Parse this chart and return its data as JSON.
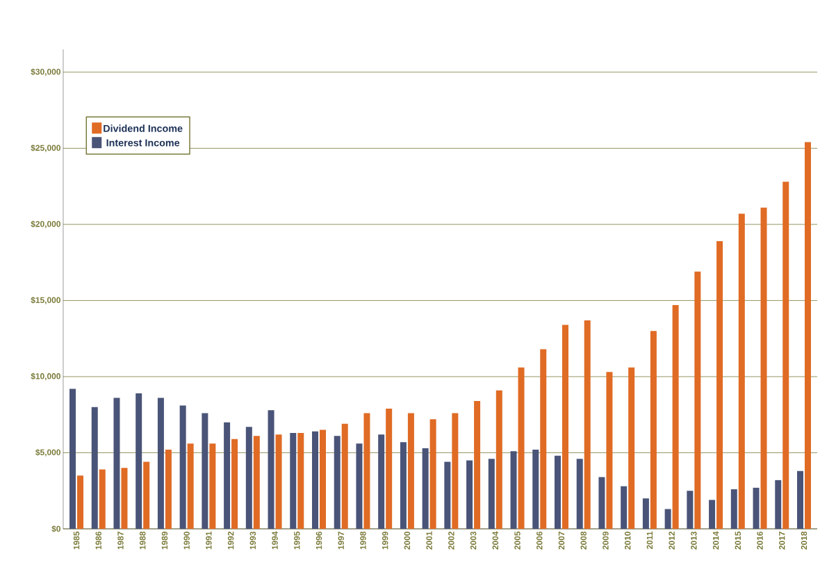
{
  "chart_data": {
    "type": "bar",
    "categories": [
      "1985",
      "1986",
      "1987",
      "1988",
      "1989",
      "1990",
      "1991",
      "1992",
      "1993",
      "1994",
      "1995",
      "1996",
      "1997",
      "1998",
      "1999",
      "2000",
      "2001",
      "2002",
      "2003",
      "2004",
      "2005",
      "2006",
      "2007",
      "2008",
      "2009",
      "2010",
      "2011",
      "2012",
      "2013",
      "2014",
      "2015",
      "2016",
      "2017",
      "2018"
    ],
    "series": [
      {
        "name": "Interest Income",
        "color": "#4a5478",
        "values": [
          9200,
          8000,
          8600,
          8900,
          8600,
          8100,
          7600,
          7000,
          6700,
          7800,
          6300,
          6400,
          6100,
          5600,
          6200,
          5700,
          5300,
          4400,
          4500,
          4600,
          5100,
          5200,
          4800,
          4600,
          3400,
          2800,
          2000,
          1300,
          2500,
          1900,
          2600,
          2700,
          3200,
          3800
        ]
      },
      {
        "name": "Dividend Income",
        "color": "#e06b25",
        "values": [
          3500,
          3900,
          4000,
          4400,
          5200,
          5600,
          5600,
          5900,
          6100,
          6200,
          6300,
          6500,
          6900,
          7600,
          7900,
          7600,
          7200,
          7600,
          8400,
          9100,
          10600,
          11800,
          13400,
          13700,
          10300,
          10600,
          13000,
          14700,
          16900,
          18900,
          20700,
          21100,
          22800,
          25400
        ]
      }
    ],
    "ylim": [
      0,
      31500
    ],
    "yticks": [
      {
        "value": 0,
        "label": "$0"
      },
      {
        "value": 5000,
        "label": "$5,000"
      },
      {
        "value": 10000,
        "label": "$10,000"
      },
      {
        "value": 15000,
        "label": "$15,000"
      },
      {
        "value": 20000,
        "label": "$20,000"
      },
      {
        "value": 25000,
        "label": "$25,000"
      },
      {
        "value": 30000,
        "label": "$30,000"
      }
    ],
    "grid": "y",
    "legend": "top left"
  }
}
